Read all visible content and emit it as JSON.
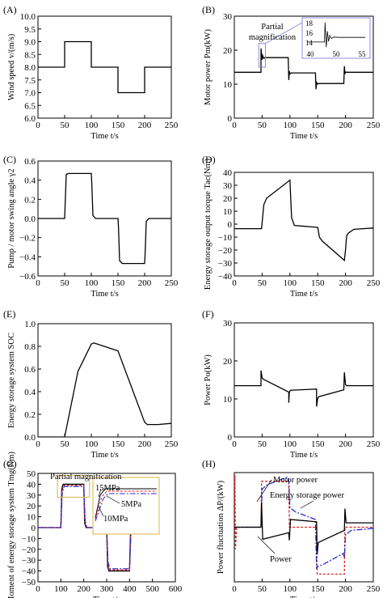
{
  "chart_data": [
    {
      "panel": "(A)",
      "type": "line",
      "xlabel": "Time t/s",
      "ylabel": "Wind speed v/(m/s)",
      "xlim": [
        0,
        250
      ],
      "ylim": [
        6.0,
        10.0
      ],
      "xticks": [
        "0",
        "50",
        "100",
        "150",
        "200",
        "250"
      ],
      "yticks": [
        "6.0",
        "6.5",
        "7.0",
        "7.5",
        "8.0",
        "8.5",
        "9.0",
        "9.5",
        "10.0"
      ],
      "series": [
        {
          "color": "#000000",
          "x": [
            0,
            50,
            50,
            100,
            100,
            150,
            150,
            200,
            200,
            250
          ],
          "y": [
            8,
            8,
            9,
            9,
            8,
            8,
            7,
            7,
            8,
            8
          ]
        }
      ]
    },
    {
      "panel": "(B)",
      "type": "line",
      "xlabel": "Time t/s",
      "ylabel": "Motor power Pm(kW)",
      "xlim": [
        0,
        250
      ],
      "ylim": [
        0,
        30
      ],
      "xticks": [
        "0",
        "50",
        "100",
        "150",
        "200",
        "250"
      ],
      "yticks": [
        "0",
        "10",
        "20",
        "30"
      ],
      "annotations": [
        "Partial magnification"
      ],
      "inset": {
        "xticks": [
          "40",
          "50",
          "55"
        ],
        "yticks": [
          "18",
          "16",
          "14"
        ]
      },
      "series": [
        {
          "color": "#000000",
          "x": [
            0,
            48,
            48,
            50,
            51,
            53,
            55,
            97,
            98,
            99,
            100,
            102,
            146,
            147,
            148,
            150,
            152,
            197,
            198,
            199,
            200,
            202,
            250
          ],
          "y": [
            13.5,
            13.5,
            20.5,
            17.2,
            18.4,
            17.6,
            17.8,
            17.8,
            11.2,
            13.8,
            13.0,
            13.3,
            13.3,
            8.5,
            10.5,
            10.0,
            10.2,
            10.2,
            15.3,
            13.0,
            13.6,
            13.5,
            13.5
          ]
        }
      ]
    },
    {
      "panel": "(C)",
      "type": "line",
      "xlabel": "Time t/s",
      "ylabel": "Pump / motor swing angle γ2",
      "xlim": [
        0,
        250
      ],
      "ylim": [
        -0.6,
        0.6
      ],
      "xticks": [
        "0",
        "50",
        "100",
        "150",
        "200",
        "250"
      ],
      "yticks": [
        "−0.6",
        "−0.4",
        "−0.2",
        "0.0",
        "0.2",
        "0.4",
        "0.6"
      ],
      "series": [
        {
          "color": "#000000",
          "x": [
            0,
            50,
            53,
            57,
            100,
            101,
            103,
            108,
            150,
            151,
            153,
            158,
            200,
            201,
            203,
            208,
            250
          ],
          "y": [
            0,
            0,
            0.46,
            0.47,
            0.47,
            0.35,
            0.03,
            0,
            0,
            -0.1,
            -0.44,
            -0.47,
            -0.47,
            -0.35,
            -0.03,
            0,
            0
          ]
        }
      ]
    },
    {
      "panel": "(D)",
      "type": "line",
      "xlabel": "Time t/s",
      "ylabel": "Energy storage output torque Tac(Nm)",
      "xlim": [
        0,
        250
      ],
      "ylim": [
        -40,
        40
      ],
      "xticks": [
        "0",
        "50",
        "100",
        "150",
        "200",
        "250"
      ],
      "yticks": [
        "−40",
        "−30",
        "−20",
        "−10",
        "0",
        "10",
        "20",
        "30",
        "40"
      ],
      "series": [
        {
          "color": "#000000",
          "x": [
            0,
            49,
            53,
            58,
            100,
            103,
            108,
            150,
            153,
            158,
            198,
            200,
            202,
            205,
            215,
            250
          ],
          "y": [
            -3.5,
            -3.5,
            15,
            20,
            34,
            5,
            -1,
            -2.5,
            -10,
            -13,
            -28,
            -20,
            -9,
            -7,
            -4,
            -3
          ]
        }
      ]
    },
    {
      "panel": "(E)",
      "type": "line",
      "xlabel": "Time t/s",
      "ylabel": "Energy storage system SOC",
      "xlim": [
        0,
        250
      ],
      "ylim": [
        0.0,
        1.0
      ],
      "xticks": [
        "0",
        "50",
        "100",
        "150",
        "200",
        "250"
      ],
      "yticks": [
        "0.0",
        "0.2",
        "0.4",
        "0.6",
        "0.8",
        "1.0"
      ],
      "series": [
        {
          "color": "#000000",
          "x": [
            0,
            50,
            75,
            100,
            105,
            150,
            200,
            205,
            225,
            250
          ],
          "y": [
            0,
            0,
            0.58,
            0.82,
            0.83,
            0.76,
            0.13,
            0.11,
            0.11,
            0.12
          ]
        }
      ]
    },
    {
      "panel": "(F)",
      "type": "line",
      "xlabel": "Time t/s",
      "ylabel": "Power Po(kW)",
      "xlim": [
        0,
        250
      ],
      "ylim": [
        0,
        30
      ],
      "xticks": [
        "0",
        "50",
        "100",
        "150",
        "200",
        "250"
      ],
      "yticks": [
        "0",
        "10",
        "20",
        "30"
      ],
      "series": [
        {
          "color": "#000000",
          "x": [
            0,
            48,
            48,
            50,
            52,
            98,
            98,
            99,
            101,
            148,
            148,
            150,
            152,
            197,
            198,
            200,
            202,
            250
          ],
          "y": [
            13.5,
            13.5,
            17.5,
            15.5,
            15.2,
            11.8,
            9.0,
            11.8,
            12.3,
            12.6,
            8.0,
            10.2,
            10.6,
            12.4,
            17.0,
            13.8,
            13.5,
            13.5
          ]
        }
      ]
    },
    {
      "panel": "(G)",
      "type": "line",
      "xlabel": "Time t/s",
      "ylabel": "Moment of energy storage system Tmg(Nm)",
      "xlim": [
        0,
        600
      ],
      "ylim": [
        -50,
        50
      ],
      "xticks": [
        "0",
        "100",
        "200",
        "300",
        "400",
        "500",
        "600"
      ],
      "yticks": [
        "−50",
        "−40",
        "−30",
        "−20",
        "−10",
        "0",
        "10",
        "20",
        "30",
        "40",
        "50"
      ],
      "annotations": [
        "Partial magnification",
        "15MPa",
        "5MPa",
        "10MPa"
      ],
      "series": [
        {
          "color": "#000000",
          "x": [
            0,
            100,
            104,
            110,
            200,
            204,
            210,
            300,
            304,
            310,
            400,
            404,
            410,
            500
          ],
          "y": [
            0,
            0,
            36,
            40,
            40,
            4,
            0,
            0,
            -36,
            -40,
            -40,
            -4,
            0,
            0
          ]
        },
        {
          "color": "#e02020",
          "dash": "3,2",
          "x": [
            0,
            100,
            105,
            112,
            200,
            205,
            212,
            300,
            305,
            312,
            400,
            405,
            412,
            500
          ],
          "y": [
            0,
            0,
            34,
            39,
            39,
            5,
            0,
            0,
            -34,
            -39,
            -39,
            -5,
            0,
            0
          ]
        },
        {
          "color": "#2a2ad0",
          "dash": "7,2,2,2",
          "x": [
            0,
            100,
            106,
            114,
            200,
            206,
            214,
            300,
            306,
            314,
            400,
            406,
            414,
            500
          ],
          "y": [
            0,
            0,
            32,
            38,
            38,
            6,
            0,
            0,
            -32,
            -38,
            -38,
            -6,
            0,
            0
          ]
        }
      ]
    },
    {
      "panel": "(H)",
      "type": "line",
      "xlabel": "Time t/s",
      "ylabel": "Power fluctuation ΔP/(kW)",
      "xlim": [
        0,
        250
      ],
      "ylim": [
        -5,
        5
      ],
      "xticks": [
        "0",
        "50",
        "100",
        "150",
        "200",
        "250"
      ],
      "annotations": [
        "Motor power",
        "Energy storage power",
        "Power"
      ],
      "series": [
        {
          "name": "Motor power",
          "color": "#e02020",
          "dash": "3,2",
          "x": [
            0,
            1,
            2,
            4,
            48,
            49,
            98,
            99,
            148,
            149,
            198,
            199,
            250
          ],
          "y": [
            0,
            4.8,
            -2.0,
            0,
            0,
            4.2,
            4.2,
            0,
            0,
            -4.3,
            -4.3,
            0,
            0
          ]
        },
        {
          "name": "Energy storage power",
          "color": "#2a2ad0",
          "dash": "7,2,2,2",
          "x": [
            0,
            48,
            50,
            60,
            96,
            98,
            100,
            110,
            146,
            148,
            150,
            160,
            196,
            198,
            200,
            210,
            250
          ],
          "y": [
            0,
            0,
            3.5,
            3.9,
            4.6,
            4.3,
            1.8,
            1.4,
            0.7,
            -3.8,
            -3.6,
            -3.4,
            -2.4,
            -2.8,
            -0.7,
            -0.3,
            -0.1
          ]
        },
        {
          "name": "Power",
          "color": "#000000",
          "x": [
            0,
            48,
            49,
            51,
            98,
            99,
            101,
            148,
            149,
            151,
            198,
            199,
            201,
            250
          ],
          "y": [
            0,
            0,
            2.3,
            -1.1,
            -0.5,
            -1.2,
            0.7,
            0.5,
            -2.5,
            -1.4,
            -0.3,
            1.7,
            0.4,
            0.4
          ]
        }
      ]
    }
  ]
}
